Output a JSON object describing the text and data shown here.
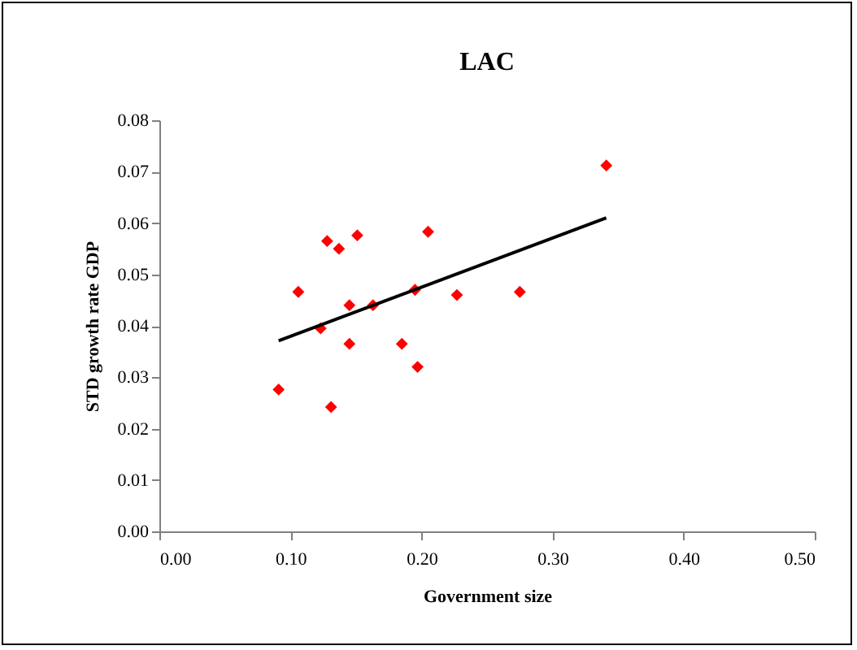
{
  "chart_data": {
    "type": "scatter",
    "title": "LAC",
    "xlabel": "Government size",
    "ylabel": "STD growth rate GDP",
    "xlim": [
      0,
      0.5
    ],
    "xticks": [
      {
        "value": 0,
        "label": "0.00"
      },
      {
        "value": 0.1,
        "label": "0.10"
      },
      {
        "value": 0.2,
        "label": "0.20"
      },
      {
        "value": 0.3,
        "label": "0.30"
      },
      {
        "value": 0.4,
        "label": "0.40"
      },
      {
        "value": 0.5,
        "label": "0.50"
      }
    ],
    "ylim": [
      0,
      0.08
    ],
    "yticks": [
      {
        "value": 0,
        "label": "0.00"
      },
      {
        "value": 0.01,
        "label": "0.01"
      },
      {
        "value": 0.02,
        "label": "0.02"
      },
      {
        "value": 0.03,
        "label": "0.03"
      },
      {
        "value": 0.04,
        "label": "0.04"
      },
      {
        "value": 0.05,
        "label": "0.05"
      },
      {
        "value": 0.06,
        "label": "0.06"
      },
      {
        "value": 0.07,
        "label": "0.07"
      },
      {
        "value": 0.08,
        "label": "0.08"
      }
    ],
    "grid": false,
    "series": [
      {
        "type": "scatter",
        "marker": "diamond",
        "color": "#ff0000",
        "x": [
          0.091,
          0.106,
          0.123,
          0.128,
          0.131,
          0.137,
          0.145,
          0.145,
          0.151,
          0.163,
          0.185,
          0.195,
          0.197,
          0.205,
          0.227,
          0.275,
          0.341
        ],
        "values": [
          0.0276,
          0.0466,
          0.0395,
          0.0565,
          0.0242,
          0.055,
          0.044,
          0.0365,
          0.0576,
          0.044,
          0.0365,
          0.047,
          0.032,
          0.0583,
          0.046,
          0.0466,
          0.0712
        ]
      },
      {
        "type": "line",
        "marker": "none",
        "color": "#000000",
        "x": [
          0.091,
          0.341
        ],
        "values": [
          0.0371,
          0.061
        ]
      }
    ]
  }
}
